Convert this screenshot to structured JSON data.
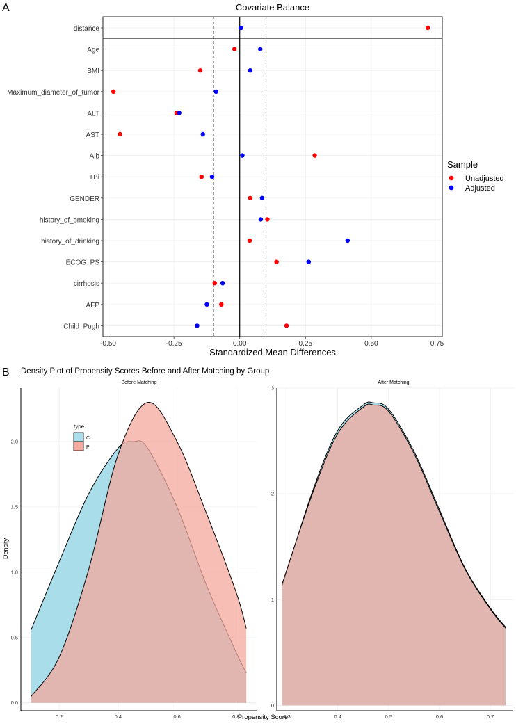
{
  "panels": {
    "a_label": "A",
    "b_label": "B",
    "b_title": "Density Plot of Propensity Scores Before and After Matching by Group"
  },
  "chart_data": [
    {
      "type": "scatter",
      "title": "Covariate Balance",
      "xlabel": "Standardized Mean Differences",
      "ylabel": "",
      "xlim": [
        -0.52,
        0.77
      ],
      "xticks": [
        "-0.50",
        "-0.25",
        "0.00",
        "0.25",
        "0.50",
        "0.75"
      ],
      "xtick_values": [
        -0.5,
        -0.25,
        0,
        0.25,
        0.5,
        0.75
      ],
      "threshold_lines": [
        -0.1,
        0.1
      ],
      "zero_line": 0,
      "categories": [
        "distance",
        "Age",
        "BMI",
        "Maximum_diameter_of_tumor",
        "ALT",
        "AST",
        "Alb",
        "TBi",
        "GENDER",
        "history_of_smoking",
        "history_of_drinking",
        "ECOG_PS",
        "cirrhosis",
        "AFP",
        "Child_Pugh"
      ],
      "legend_title": "Sample",
      "legend_position": "right",
      "series": [
        {
          "name": "Unadjusted",
          "color": "#ff0000",
          "values": [
            0.715,
            -0.02,
            -0.15,
            -0.48,
            -0.24,
            -0.455,
            0.285,
            -0.145,
            0.04,
            0.105,
            0.038,
            0.14,
            -0.095,
            -0.07,
            0.178
          ]
        },
        {
          "name": "Adjusted",
          "color": "#0000ff",
          "values": [
            0.005,
            0.078,
            0.04,
            -0.09,
            -0.23,
            -0.14,
            0.01,
            -0.105,
            0.085,
            0.08,
            0.41,
            0.262,
            -0.065,
            -0.125,
            -0.162
          ]
        }
      ]
    },
    {
      "type": "area",
      "title": "Before Matching",
      "xlabel": "",
      "ylabel": "Density",
      "xlim": [
        0.07,
        0.87
      ],
      "ylim": [
        -0.06,
        2.41
      ],
      "xticks": [
        "0.2",
        "0.4",
        "0.6",
        "0.8"
      ],
      "xtick_values": [
        0.2,
        0.4,
        0.6,
        0.8
      ],
      "yticks": [
        "0.0",
        "0.5",
        "1.0",
        "1.5",
        "2.0"
      ],
      "ytick_values": [
        0,
        0.5,
        1.0,
        1.5,
        2.0
      ],
      "legend_title": "type",
      "legend_position": "top-left",
      "series": [
        {
          "name": "C",
          "color": "#a8dde9",
          "x": [
            0.105,
            0.2,
            0.3,
            0.4,
            0.452,
            0.5,
            0.6,
            0.7,
            0.8,
            0.835
          ],
          "values": [
            0.56,
            1.08,
            1.6,
            1.95,
            2.0,
            1.95,
            1.5,
            0.9,
            0.39,
            0.23
          ]
        },
        {
          "name": "P",
          "color": "#f4a89e",
          "x": [
            0.105,
            0.2,
            0.3,
            0.4,
            0.5,
            0.6,
            0.7,
            0.8,
            0.835
          ],
          "values": [
            0.05,
            0.35,
            1.02,
            1.9,
            2.3,
            2.0,
            1.45,
            0.85,
            0.57
          ]
        }
      ]
    },
    {
      "type": "area",
      "title": "After Matching",
      "xlabel": "Propensity Score",
      "ylabel": "",
      "xlim": [
        0.28,
        0.745
      ],
      "ylim": [
        -0.05,
        3.0
      ],
      "xticks": [
        "0.3",
        "0.4",
        "0.5",
        "0.6",
        "0.7"
      ],
      "xtick_values": [
        0.3,
        0.4,
        0.5,
        0.6,
        0.7
      ],
      "yticks": [
        "0",
        "1",
        "2",
        "3"
      ],
      "ytick_values": [
        0,
        1,
        2,
        3
      ],
      "series": [
        {
          "name": "C",
          "color": "#a8dde9",
          "x": [
            0.29,
            0.35,
            0.4,
            0.45,
            0.47,
            0.5,
            0.55,
            0.6,
            0.65,
            0.7,
            0.73
          ],
          "values": [
            1.12,
            2.02,
            2.6,
            2.84,
            2.86,
            2.8,
            2.4,
            1.85,
            1.3,
            0.92,
            0.74
          ]
        },
        {
          "name": "P",
          "color": "#f4a89e",
          "x": [
            0.29,
            0.35,
            0.4,
            0.45,
            0.47,
            0.5,
            0.55,
            0.6,
            0.65,
            0.7,
            0.73
          ],
          "values": [
            1.14,
            2.0,
            2.57,
            2.82,
            2.84,
            2.78,
            2.38,
            1.83,
            1.29,
            0.91,
            0.73
          ]
        }
      ]
    }
  ]
}
